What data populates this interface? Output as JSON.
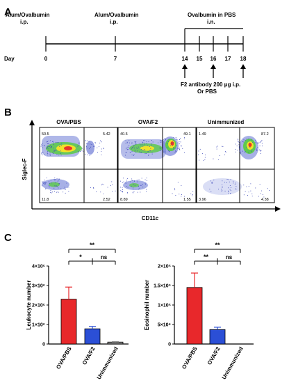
{
  "panels": {
    "a": {
      "letter": "A",
      "top_labels": [
        {
          "line1": "Alum/Ovalbumin",
          "line2": "i.p."
        },
        {
          "line1": "Alum/Ovalbumin",
          "line2": "i.p."
        },
        {
          "line1": "Ovalbumin in PBS",
          "line2": "i.n."
        }
      ],
      "day_label": "Day",
      "days": [
        "0",
        "7",
        "14",
        "15",
        "16",
        "17",
        "18"
      ],
      "treatment_line1": "F2 antibody 200 μg i.p.",
      "treatment_line2": "Or PBS"
    },
    "b": {
      "letter": "B",
      "y_axis_label": "Siglec-F",
      "x_axis_label": "CD11c",
      "plots": [
        {
          "title": "OVA/PBS",
          "q_tl": "50.5",
          "q_tr": "5.42",
          "q_bl": "11.8",
          "q_br": "2.52"
        },
        {
          "title": "OVA/F2",
          "q_tl": "40.5",
          "q_tr": "49.1",
          "q_bl": "8.89",
          "q_br": "1.55"
        },
        {
          "title": "Unimmunized",
          "q_tl": "1.49",
          "q_tr": "87.2",
          "q_bl": "3.96",
          "q_br": "4.38"
        }
      ]
    },
    "c": {
      "letter": "C",
      "left_ylabel": "Leukocyte number",
      "right_ylabel": "Eosinophil number",
      "sig_star2": "**",
      "sig_star1": "*",
      "sig_ns": "ns"
    }
  },
  "chart_data": [
    {
      "type": "bar",
      "title": "",
      "ylabel": "Leukocyte number",
      "xlabel": "",
      "categories": [
        "OVA/PBS",
        "OVA/F2",
        "Unimmunized"
      ],
      "values": [
        2300000,
        780000,
        100000
      ],
      "errors": [
        620000,
        120000,
        20000
      ],
      "ylim": [
        0,
        4000000
      ],
      "yticks": [
        0,
        1000000,
        2000000,
        3000000,
        4000000
      ],
      "ytick_labels": [
        "0",
        "1×10⁶",
        "2×10⁶",
        "3×10⁶",
        "4×10⁶"
      ],
      "colors": [
        "#e8282b",
        "#2b4fd6",
        "#8a8a8a"
      ],
      "significance": [
        {
          "pair": [
            "OVA/PBS",
            "Unimmunized"
          ],
          "label": "**"
        },
        {
          "pair": [
            "OVA/PBS",
            "OVA/F2"
          ],
          "label": "*"
        },
        {
          "pair": [
            "OVA/F2",
            "Unimmunized"
          ],
          "label": "ns"
        }
      ]
    },
    {
      "type": "bar",
      "title": "",
      "ylabel": "Eosinophil number",
      "xlabel": "",
      "categories": [
        "OVA/PBS",
        "OVA/F2",
        "Unimmunized"
      ],
      "values": [
        145000,
        37000,
        0
      ],
      "errors": [
        37000,
        6000,
        0
      ],
      "ylim": [
        0,
        200000
      ],
      "yticks": [
        0,
        50000,
        100000,
        150000,
        200000
      ],
      "ytick_labels": [
        "0",
        "5×10⁴",
        "1×10⁵",
        "1.5×10⁵",
        "2×10⁵"
      ],
      "colors": [
        "#e8282b",
        "#2b4fd6",
        "#8a8a8a"
      ],
      "significance": [
        {
          "pair": [
            "OVA/PBS",
            "Unimmunized"
          ],
          "label": "**"
        },
        {
          "pair": [
            "OVA/PBS",
            "OVA/F2"
          ],
          "label": "**"
        },
        {
          "pair": [
            "OVA/F2",
            "Unimmunized"
          ],
          "label": "ns"
        }
      ]
    }
  ]
}
